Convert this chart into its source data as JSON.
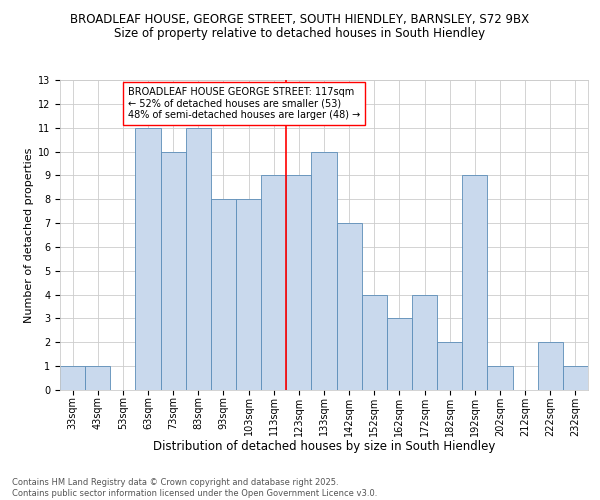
{
  "title1": "BROADLEAF HOUSE, GEORGE STREET, SOUTH HIENDLEY, BARNSLEY, S72 9BX",
  "title2": "Size of property relative to detached houses in South Hiendley",
  "xlabel": "Distribution of detached houses by size in South Hiendley",
  "ylabel": "Number of detached properties",
  "footnote1": "Contains HM Land Registry data © Crown copyright and database right 2025.",
  "footnote2": "Contains public sector information licensed under the Open Government Licence v3.0.",
  "annotation_title": "BROADLEAF HOUSE GEORGE STREET: 117sqm",
  "annotation_line1": "← 52% of detached houses are smaller (53)",
  "annotation_line2": "48% of semi-detached houses are larger (48) →",
  "bar_labels": [
    "33sqm",
    "43sqm",
    "53sqm",
    "63sqm",
    "73sqm",
    "83sqm",
    "93sqm",
    "103sqm",
    "113sqm",
    "123sqm",
    "133sqm",
    "142sqm",
    "152sqm",
    "162sqm",
    "172sqm",
    "182sqm",
    "192sqm",
    "202sqm",
    "212sqm",
    "222sqm",
    "232sqm"
  ],
  "bar_values": [
    1,
    1,
    0,
    11,
    10,
    11,
    8,
    8,
    9,
    9,
    10,
    7,
    4,
    3,
    4,
    2,
    9,
    1,
    0,
    2,
    1
  ],
  "bar_color": "#c9d9ed",
  "bar_edge_color": "#5b8db8",
  "ref_line_color": "red",
  "annotation_box_color": "white",
  "annotation_box_edge_color": "red",
  "ylim": [
    0,
    13
  ],
  "yticks": [
    0,
    1,
    2,
    3,
    4,
    5,
    6,
    7,
    8,
    9,
    10,
    11,
    12,
    13
  ],
  "grid_color": "#cccccc",
  "background_color": "white",
  "title1_fontsize": 8.5,
  "title2_fontsize": 8.5,
  "xlabel_fontsize": 8.5,
  "ylabel_fontsize": 8.0,
  "tick_fontsize": 7.0,
  "annotation_fontsize": 7.0,
  "footnote_fontsize": 6.0
}
